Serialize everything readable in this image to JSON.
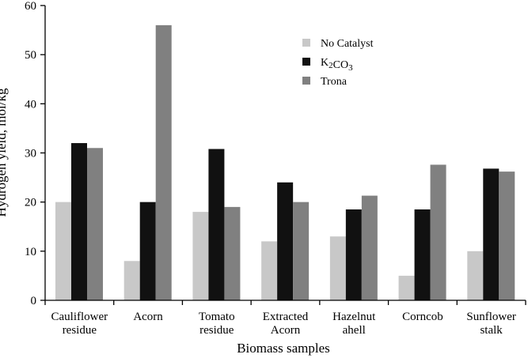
{
  "chart_data": {
    "type": "bar",
    "categories": [
      [
        "Cauliflower",
        "residue"
      ],
      [
        "Acorn"
      ],
      [
        "Tomato",
        "residue"
      ],
      [
        "Extracted",
        "Acorn"
      ],
      [
        "Hazelnut",
        "ahell"
      ],
      [
        "Corncob"
      ],
      [
        "Sunflower",
        "stalk"
      ]
    ],
    "series": [
      {
        "name": "No Catalyst",
        "color": "#c8c8c8",
        "values": [
          20,
          8,
          18,
          12,
          13,
          5,
          10
        ]
      },
      {
        "name": "K2CO3",
        "name_parts": {
          "base": "K",
          "sub1": "2",
          "mid": "CO",
          "sub2": "3"
        },
        "color": "#111111",
        "values": [
          32,
          20,
          30.8,
          24,
          18.5,
          18.5,
          26.8
        ]
      },
      {
        "name": "Trona",
        "color": "#808080",
        "values": [
          31,
          56,
          19,
          20,
          21.3,
          27.6,
          26.2
        ]
      }
    ],
    "xlabel": "Biomass samples",
    "ylabel": "Hydrogen yield, mol/kg",
    "ylim": [
      0,
      60
    ],
    "yticks": [
      0,
      10,
      20,
      30,
      40,
      50,
      60
    ],
    "grid": false,
    "legend_position": "top-right"
  }
}
